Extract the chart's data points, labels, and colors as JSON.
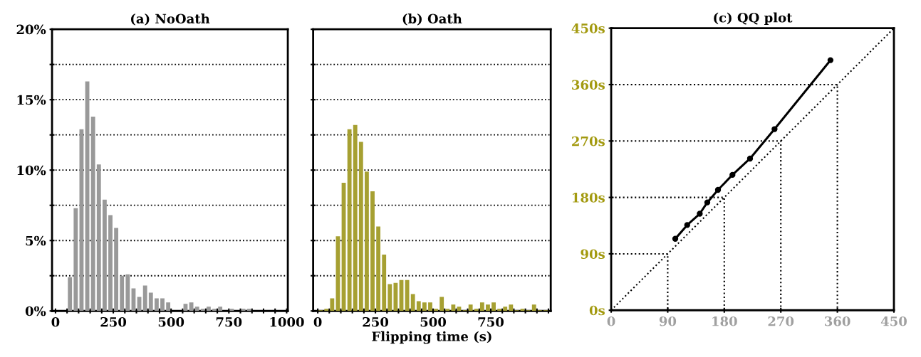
{
  "chart_data": [
    {
      "type": "histogram",
      "title": "(a) NoOath",
      "color": "#999999",
      "bins": [
        0,
        25,
        50,
        75,
        100,
        125,
        150,
        175,
        200,
        225,
        250,
        275,
        300,
        325,
        350,
        375,
        400,
        425,
        450,
        475,
        500,
        525,
        550,
        575,
        600,
        625,
        650,
        675,
        700,
        725,
        750,
        775,
        800,
        825,
        850,
        875,
        900,
        925,
        950,
        975,
        1000
      ],
      "values": [
        0,
        0,
        2.4,
        7.3,
        12.9,
        16.3,
        13.8,
        10.4,
        7.9,
        6.8,
        5.9,
        2.5,
        2.6,
        1.6,
        1.0,
        1.8,
        1.3,
        0.9,
        0.9,
        0.6,
        0,
        0,
        0.5,
        0.6,
        0.3,
        0.15,
        0.3,
        0.15,
        0.3,
        0,
        0.15,
        0,
        0.15,
        0.15,
        0,
        0,
        0,
        0,
        0,
        0
      ],
      "xlim": [
        -15,
        1005
      ],
      "xticks": [
        0,
        {
          "value": 50,
          "label": null
        },
        {
          "value": 100,
          "label": null
        },
        {
          "value": 150,
          "label": null
        },
        {
          "value": 200,
          "label": null
        },
        250,
        {
          "value": 300,
          "label": null
        },
        {
          "value": 350,
          "label": null
        },
        {
          "value": 400,
          "label": null
        },
        {
          "value": 450,
          "label": null
        },
        500,
        {
          "value": 550,
          "label": null
        },
        {
          "value": 600,
          "label": null
        },
        {
          "value": 650,
          "label": null
        },
        {
          "value": 700,
          "label": null
        },
        750,
        {
          "value": 800,
          "label": null
        },
        {
          "value": 850,
          "label": null
        },
        {
          "value": 900,
          "label": null
        },
        {
          "value": 950,
          "label": null
        },
        1000
      ],
      "ylim": [
        0,
        20
      ],
      "yticks": [
        {
          "value": 0,
          "label": "0%"
        },
        {
          "value": 2.5,
          "label": null
        },
        {
          "value": 5,
          "label": "5%"
        },
        {
          "value": 7.5,
          "label": null
        },
        {
          "value": 10,
          "label": "10%"
        },
        {
          "value": 12.5,
          "label": null
        },
        {
          "value": 15,
          "label": "15%"
        },
        {
          "value": 17.5,
          "label": null
        },
        {
          "value": 20,
          "label": "20%"
        }
      ],
      "grid": "y"
    },
    {
      "type": "histogram",
      "title": "(b) Oath",
      "xlabel": "Flipping time (s)",
      "color": "#a6a032",
      "bins": [
        0,
        25,
        50,
        75,
        100,
        125,
        150,
        175,
        200,
        225,
        250,
        275,
        300,
        325,
        350,
        375,
        400,
        425,
        450,
        475,
        500,
        525,
        550,
        575,
        600,
        625,
        650,
        675,
        700,
        725,
        750,
        775,
        800,
        825,
        850,
        875,
        900,
        925,
        950,
        975,
        1000
      ],
      "values": [
        0.05,
        0.15,
        0.9,
        5.3,
        9.1,
        12.9,
        13.2,
        12.0,
        9.9,
        8.5,
        6.0,
        4.0,
        1.9,
        2.0,
        2.2,
        2.2,
        1.2,
        0.7,
        0.6,
        0.6,
        0.15,
        1.0,
        0.15,
        0.45,
        0.3,
        0.05,
        0.45,
        0.15,
        0.6,
        0.45,
        0.6,
        0.15,
        0.3,
        0.45,
        0.05,
        0.15,
        0.05,
        0.45,
        0.05,
        0.05
      ],
      "xlim": [
        -20,
        1010
      ],
      "xticks": [
        0,
        {
          "value": 50,
          "label": null
        },
        {
          "value": 100,
          "label": null
        },
        {
          "value": 150,
          "label": null
        },
        {
          "value": 200,
          "label": null
        },
        250,
        {
          "value": 300,
          "label": null
        },
        {
          "value": 350,
          "label": null
        },
        {
          "value": 400,
          "label": null
        },
        {
          "value": 450,
          "label": null
        },
        500,
        {
          "value": 550,
          "label": null
        },
        {
          "value": 600,
          "label": null
        },
        {
          "value": 650,
          "label": null
        },
        {
          "value": 700,
          "label": null
        },
        750,
        {
          "value": 800,
          "label": null
        },
        {
          "value": 850,
          "label": null
        },
        {
          "value": 900,
          "label": null
        },
        {
          "value": 950,
          "label": null
        },
        {
          "value": 1000,
          "label": null
        }
      ],
      "ylim": [
        0,
        20
      ],
      "yticks": [
        0,
        2.5,
        5,
        7.5,
        10,
        12.5,
        15,
        17.5,
        20
      ],
      "tick_labels": "x",
      "grid": "y"
    },
    {
      "type": "line",
      "title": "(c) QQ plot",
      "series": [
        {
          "color": "#000000",
          "marker": "circle",
          "line_style": "solid",
          "x": [
            102,
            121,
            141,
            153,
            170,
            193,
            221,
            260,
            349
          ],
          "values": [
            114,
            136,
            154,
            172,
            192,
            216,
            242,
            289,
            399
          ]
        },
        {
          "color": "#000000",
          "line_style": "dotted",
          "x": [
            0,
            450
          ],
          "values": [
            0,
            450
          ]
        },
        {
          "color": "#000000",
          "line_style": "dotted",
          "x": [
            0,
            90,
            90
          ],
          "values": [
            90,
            90,
            0
          ]
        },
        {
          "color": "#000000",
          "line_style": "dotted",
          "x": [
            0,
            180,
            180
          ],
          "values": [
            180,
            180,
            0
          ]
        },
        {
          "color": "#000000",
          "line_style": "dotted",
          "x": [
            0,
            270,
            270
          ],
          "values": [
            270,
            270,
            0
          ]
        },
        {
          "color": "#000000",
          "line_style": "dotted",
          "x": [
            0,
            360,
            360
          ],
          "values": [
            360,
            360,
            0
          ]
        }
      ],
      "xlim": [
        0,
        450
      ],
      "xticks": [
        0,
        90,
        180,
        270,
        360,
        450
      ],
      "ylim": [
        0,
        450
      ],
      "yticks": [
        {
          "value": 0,
          "label": "0s"
        },
        {
          "value": 90,
          "label": "90s"
        },
        {
          "value": 180,
          "label": "180s"
        },
        {
          "value": 270,
          "label": "270s"
        },
        {
          "value": 360,
          "label": "360s"
        },
        {
          "value": 450,
          "label": "450s"
        }
      ]
    }
  ]
}
